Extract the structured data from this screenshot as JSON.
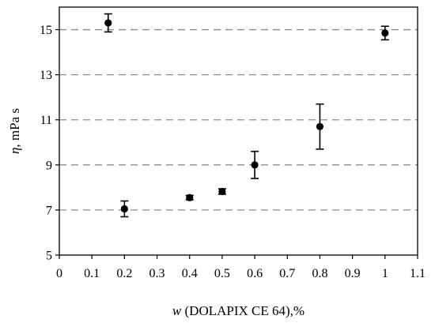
{
  "chart_data": {
    "type": "scatter",
    "xlabel_italic": "w",
    "xlabel_rest": " (DOLAPIX CE 64),%",
    "ylabel_italic": "η",
    "ylabel_rest": ", mPa s",
    "xlim": [
      0,
      1.1
    ],
    "ylim": [
      5,
      16
    ],
    "xticks": [
      "0",
      "0.1",
      "0.2",
      "0.3",
      "0.4",
      "0.5",
      "0.6",
      "0.7",
      "0.8",
      "0.9",
      "1",
      "1.1"
    ],
    "yticks": [
      "5",
      "7",
      "9",
      "11",
      "13",
      "15"
    ],
    "grid": "horizontal dashed",
    "points": [
      {
        "x": 0.15,
        "y": 15.3,
        "err": 0.4
      },
      {
        "x": 0.2,
        "y": 7.05,
        "err": 0.35
      },
      {
        "x": 0.4,
        "y": 7.55,
        "err": 0.1
      },
      {
        "x": 0.5,
        "y": 7.82,
        "err": 0.12
      },
      {
        "x": 0.6,
        "y": 9.0,
        "err": 0.6
      },
      {
        "x": 0.8,
        "y": 10.7,
        "err": 1.0
      },
      {
        "x": 1.0,
        "y": 14.85,
        "err": 0.3
      }
    ]
  }
}
